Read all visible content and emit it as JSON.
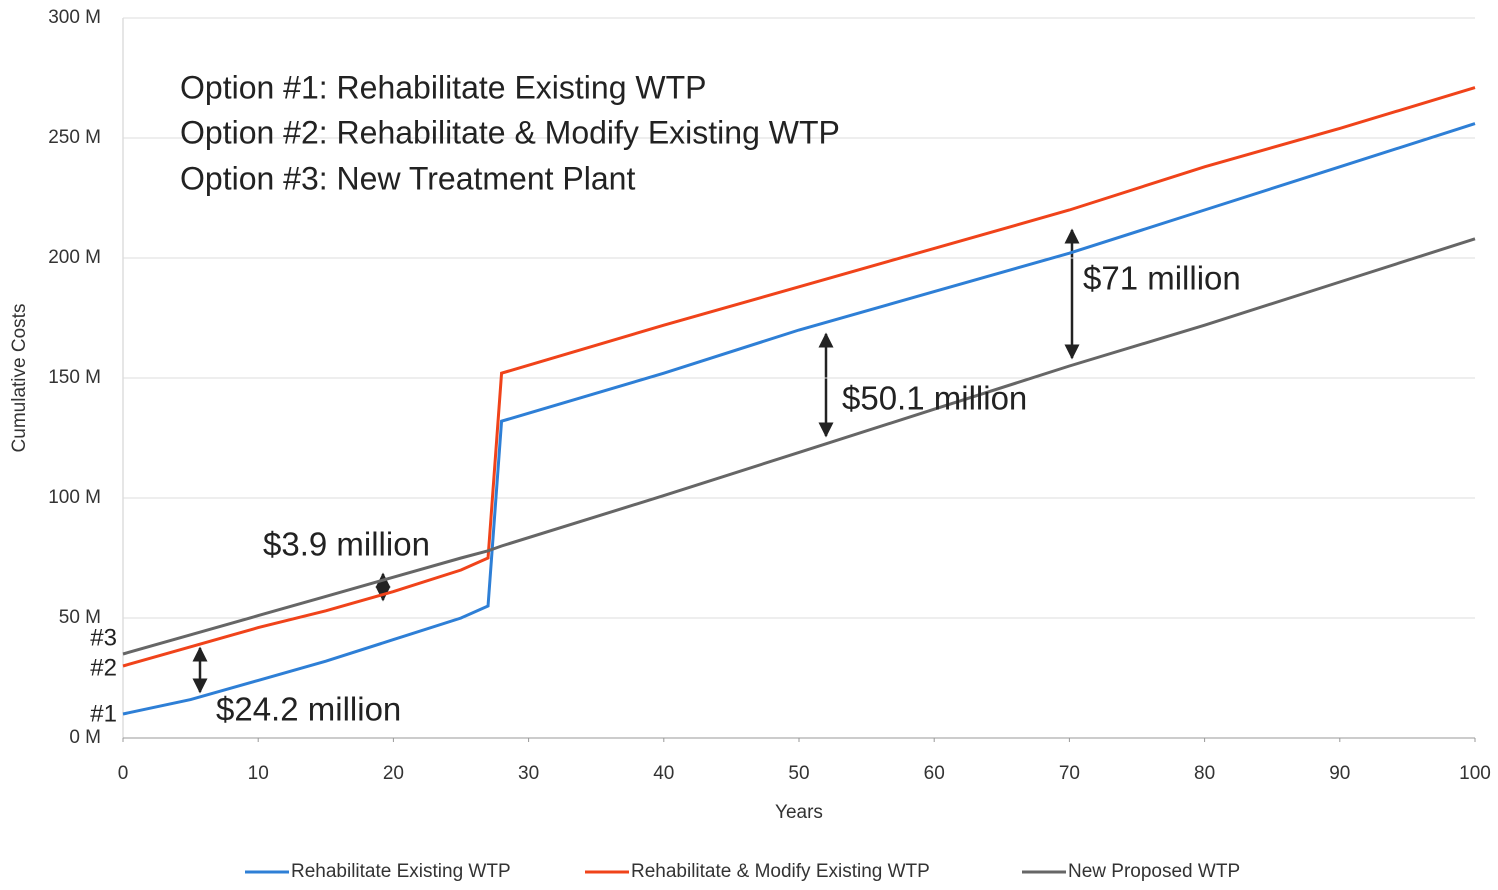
{
  "chart_data": {
    "type": "line",
    "xlabel": "Years",
    "ylabel": "Cumulative Costs",
    "x": [
      0,
      5,
      10,
      15,
      20,
      25,
      27,
      28,
      40,
      50,
      60,
      70,
      80,
      90,
      100
    ],
    "xlim": [
      0,
      100
    ],
    "xticks": [
      0,
      10,
      20,
      30,
      40,
      50,
      60,
      70,
      80,
      90,
      100
    ],
    "ylim": [
      0,
      300
    ],
    "yticks": [
      {
        "value": 0,
        "label": "0 M"
      },
      {
        "value": 50,
        "label": "50 M"
      },
      {
        "value": 100,
        "label": "100 M"
      },
      {
        "value": 150,
        "label": "150 M"
      },
      {
        "value": 200,
        "label": "200 M"
      },
      {
        "value": 250,
        "label": "250 M"
      },
      {
        "value": 300,
        "label": "300 M"
      }
    ],
    "grid": true,
    "legend": "bottom",
    "series": [
      {
        "name": "Rehabilitate Existing WTP",
        "color": "#2e7fd6",
        "values": [
          10,
          16,
          24,
          32,
          41,
          50,
          55,
          132,
          152,
          170,
          186,
          202,
          220,
          238,
          256
        ]
      },
      {
        "name": "Rehabilitate & Modify Existing WTP",
        "color": "#f0431a",
        "values": [
          30,
          38,
          46,
          53,
          61,
          70,
          75,
          152,
          172,
          188,
          204,
          220,
          238,
          254,
          271
        ]
      },
      {
        "name": "New Proposed WTP",
        "color": "#666666",
        "values": [
          35,
          43,
          51,
          59,
          67,
          75,
          78,
          80,
          101,
          119,
          137,
          155,
          172,
          190,
          208
        ]
      }
    ],
    "annotations": [
      "Option #1: Rehabilitate Existing WTP",
      "Option #2: Rehabilitate & Modify Existing WTP",
      "Option #3: New Treatment Plant",
      "$71 million",
      "$50.1 million",
      "$3.9 million",
      "$24.2 million",
      "#3",
      "#2",
      "#1"
    ]
  }
}
